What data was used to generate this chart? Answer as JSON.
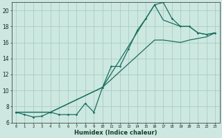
{
  "xlabel": "Humidex (Indice chaleur)",
  "bg_color": "#cce8e0",
  "grid_color": "#aaccc4",
  "line_color": "#1a6e5e",
  "x_min": 0,
  "x_max": 23,
  "y_min": 6,
  "y_max": 21,
  "yticks": [
    6,
    8,
    10,
    12,
    14,
    16,
    18,
    20
  ],
  "curve1_x": [
    0,
    1,
    2,
    3,
    4,
    5,
    6,
    7,
    8,
    9,
    10,
    11,
    12,
    13,
    14,
    15,
    16,
    17,
    18,
    19,
    20,
    21,
    22,
    23
  ],
  "curve1_y": [
    7.3,
    7.0,
    6.7,
    6.8,
    7.3,
    7.0,
    7.0,
    7.0,
    8.4,
    7.3,
    10.4,
    13.0,
    13.0,
    15.2,
    17.5,
    19.0,
    20.7,
    21.0,
    19.0,
    18.0,
    18.0,
    17.2,
    17.0,
    17.2
  ],
  "curve2_x": [
    0,
    4,
    10,
    16,
    17,
    19,
    20,
    21,
    22,
    23
  ],
  "curve2_y": [
    7.3,
    7.3,
    10.4,
    20.7,
    18.8,
    18.0,
    18.0,
    17.2,
    17.0,
    17.2
  ],
  "curve3_x": [
    0,
    4,
    10,
    16,
    17,
    19,
    20,
    21,
    22,
    23
  ],
  "curve3_y": [
    7.3,
    7.3,
    10.4,
    16.3,
    16.3,
    16.0,
    16.3,
    16.5,
    16.7,
    17.2
  ]
}
